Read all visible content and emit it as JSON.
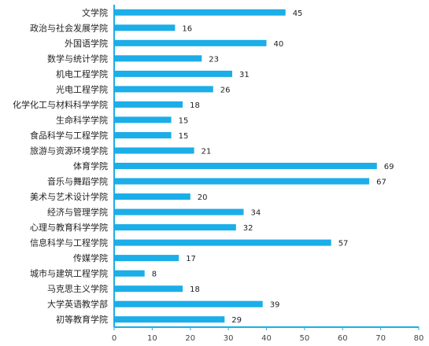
{
  "chart_data": {
    "type": "bar",
    "orientation": "horizontal",
    "title": "",
    "xlabel": "",
    "ylabel": "",
    "xlim": [
      0,
      80
    ],
    "xticks": [
      0,
      10,
      20,
      30,
      40,
      50,
      60,
      70,
      80
    ],
    "grid": false,
    "legend": "none",
    "bar_color": "#1BAEE8",
    "categories": [
      "文学院",
      "政治与社会发展学院",
      "外国语学院",
      "数学与统计学院",
      "机电工程学院",
      "光电工程学院",
      "化学化工与材料科学学院",
      "生命科学学院",
      "食品科学与工程学院",
      "旅游与资源环境学院",
      "体育学院",
      "音乐与舞蹈学院",
      "美术与艺术设计学院",
      "经济与管理学院",
      "心理与教育科学学院",
      "信息科学与工程学院",
      "传媒学院",
      "城市与建筑工程学院",
      "马克思主义学院",
      "大学英语教学部",
      "初等教育学院"
    ],
    "values": [
      45,
      16,
      40,
      23,
      31,
      26,
      18,
      15,
      15,
      21,
      69,
      67,
      20,
      34,
      32,
      57,
      17,
      8,
      18,
      39,
      29
    ]
  }
}
